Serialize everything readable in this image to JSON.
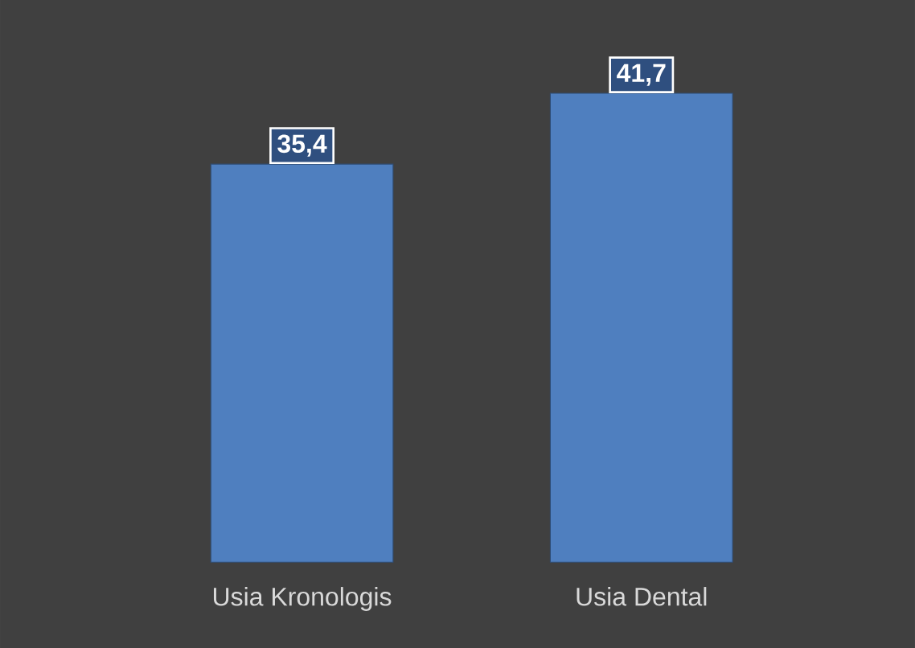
{
  "chart_data": {
    "type": "bar",
    "categories": [
      "Usia Kronologis",
      "Usia Dental"
    ],
    "values": [
      35.4,
      41.7
    ],
    "color": "#4f7fbf",
    "value_labels": [
      "35,4",
      "41,7"
    ]
  }
}
